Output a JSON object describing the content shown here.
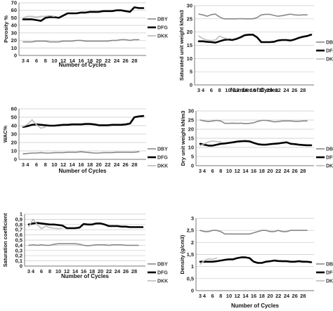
{
  "chart_data": [
    {
      "type": "line",
      "title": "",
      "xlabel": "Number of Cycles",
      "ylabel": "Porosity %",
      "ylim": [
        0,
        70
      ],
      "yticks": [
        0,
        10,
        20,
        30,
        40,
        50,
        60,
        70
      ],
      "ytick_labels": [
        "0",
        "10",
        "20",
        "30",
        "40",
        "50",
        "60",
        "70"
      ],
      "x": [
        3,
        4,
        5,
        6,
        7,
        8,
        9,
        10,
        11,
        12,
        13,
        14,
        15,
        16,
        17,
        18,
        19,
        20,
        21,
        22,
        23,
        24,
        25,
        26,
        27,
        28,
        29,
        30
      ],
      "xtick_labels": [
        "3",
        "4",
        "6",
        "8",
        "10",
        "12",
        "14",
        "16",
        "18",
        "20",
        "22",
        "24",
        "26",
        "28"
      ],
      "grid": true,
      "legend": "right",
      "series": [
        {
          "name": "DBY",
          "color": "#888888",
          "values": [
            18,
            18,
            18,
            19,
            19,
            19,
            18,
            18,
            18,
            19,
            19,
            19,
            20,
            20,
            19,
            19,
            19,
            19,
            19,
            19,
            20,
            20,
            21,
            21,
            20,
            21,
            21,
            null
          ]
        },
        {
          "name": "DFG",
          "color": "#000000",
          "values": [
            48,
            48,
            48,
            47,
            46,
            50,
            51,
            51,
            50,
            53,
            56,
            56,
            56,
            57,
            57,
            58,
            58,
            58,
            59,
            59,
            59,
            60,
            60,
            59,
            58,
            64,
            63,
            63
          ]
        },
        {
          "name": "DKK",
          "color": "#bbbbbb",
          "values": [
            50,
            52,
            52,
            51,
            52,
            52,
            53,
            52,
            null,
            null,
            null,
            null,
            null,
            null,
            null,
            null,
            null,
            null,
            null,
            null,
            null,
            null,
            null,
            null,
            null,
            null,
            null,
            null
          ]
        }
      ]
    },
    {
      "type": "line",
      "title": "",
      "xlabel": "Number of Cycles",
      "ylabel": "Saturated unit weight kN/m3",
      "ylim": [
        0,
        30
      ],
      "yticks": [
        0,
        5,
        10,
        15,
        20,
        25,
        30
      ],
      "ytick_labels": [
        "0",
        "5",
        "10",
        "15",
        "20",
        "25",
        "30"
      ],
      "x": [
        3,
        4,
        5,
        6,
        7,
        8,
        9,
        10,
        11,
        12,
        13,
        14,
        15,
        16,
        17,
        18,
        19,
        20,
        21,
        22,
        23,
        24,
        25,
        26,
        27,
        28,
        29,
        30
      ],
      "xtick_labels": [
        "3",
        "4",
        "6",
        "8",
        "10",
        "12",
        "14",
        "16",
        "18",
        "20",
        "22",
        "24",
        "26",
        "28"
      ],
      "grid": true,
      "legend": "right",
      "series": [
        {
          "name": "DBY",
          "color": "#888888",
          "values": [
            26.8,
            26.5,
            26,
            26.6,
            26.8,
            25.7,
            25,
            25,
            25,
            25,
            25.1,
            25,
            25,
            25,
            25.5,
            26.5,
            26.7,
            26.7,
            26.3,
            26,
            26.2,
            26.5,
            26.8,
            26.5,
            26.4,
            26.5,
            26.5,
            null
          ]
        },
        {
          "name": "DFG",
          "color": "#000000",
          "values": [
            16.5,
            16.5,
            16.3,
            16.2,
            16,
            16.5,
            17,
            17.2,
            17,
            17.4,
            18,
            18.8,
            19,
            19,
            18,
            16.2,
            16.2,
            16.2,
            16.3,
            16.8,
            17,
            17,
            16.8,
            17.2,
            17.8,
            18.2,
            18.5,
            19
          ]
        },
        {
          "name": "DKK",
          "color": "#bbbbbb",
          "values": [
            18.5,
            17.5,
            17,
            16.8,
            17,
            18.5,
            17.8,
            17.5,
            null,
            null,
            null,
            null,
            null,
            null,
            null,
            null,
            null,
            null,
            null,
            null,
            null,
            null,
            null,
            null,
            null,
            null,
            null,
            null
          ]
        }
      ]
    },
    {
      "type": "line",
      "title": "",
      "xlabel": "Number of Cycles",
      "ylabel": "WAC%",
      "ylim": [
        0,
        60
      ],
      "yticks": [
        0,
        10,
        20,
        30,
        40,
        50,
        60
      ],
      "ytick_labels": [
        "0",
        "10",
        "20",
        "30",
        "40",
        "50",
        "60"
      ],
      "x": [
        3,
        4,
        5,
        6,
        7,
        8,
        9,
        10,
        11,
        12,
        13,
        14,
        15,
        16,
        17,
        18,
        19,
        20,
        21,
        22,
        23,
        24,
        25,
        26,
        27,
        28,
        29,
        30
      ],
      "xtick_labels": [
        "3",
        "4",
        "6",
        "8",
        "10",
        "12",
        "14",
        "16",
        "18",
        "20",
        "22",
        "24",
        "26",
        "28"
      ],
      "grid": true,
      "legend": "right",
      "series": [
        {
          "name": "DBY",
          "color": "#888888",
          "values": [
            6.5,
            7,
            7.5,
            7.5,
            8,
            7.5,
            7.5,
            8,
            8,
            8,
            8.5,
            8.5,
            8.5,
            9,
            8.5,
            8,
            7.5,
            7.5,
            8,
            8,
            8,
            8.5,
            8.5,
            8.5,
            8.5,
            8.5,
            9,
            null
          ]
        },
        {
          "name": "DFG",
          "color": "#000000",
          "values": [
            38.5,
            39.5,
            41,
            41.5,
            41,
            40.5,
            40,
            40,
            40.5,
            41,
            41,
            41.5,
            41.5,
            41.5,
            42,
            42,
            41.5,
            40.5,
            40.5,
            40.5,
            41,
            41,
            41,
            41.5,
            42.5,
            50,
            51,
            51.5
          ]
        },
        {
          "name": "DKK",
          "color": "#bbbbbb",
          "values": [
            39,
            41.5,
            47,
            41,
            37,
            38.5,
            null,
            null,
            null,
            null,
            null,
            null,
            null,
            null,
            null,
            null,
            null,
            null,
            null,
            null,
            null,
            null,
            null,
            null,
            null,
            null,
            null,
            null
          ]
        }
      ]
    },
    {
      "type": "line",
      "title": "",
      "xlabel": "",
      "ylabel": "Dry unit weight kN/m3",
      "ylim": [
        0,
        30
      ],
      "yticks": [
        0,
        5,
        10,
        15,
        20,
        25,
        30
      ],
      "ytick_labels": [
        "0",
        "5",
        "10",
        "15",
        "20",
        "25",
        "30"
      ],
      "x": [
        3,
        4,
        5,
        6,
        7,
        8,
        9,
        10,
        11,
        12,
        13,
        14,
        15,
        16,
        17,
        18,
        19,
        20,
        21,
        22,
        23,
        24,
        25,
        26,
        27,
        28,
        29,
        30
      ],
      "xtick_labels": [
        "3",
        "4",
        "6",
        "8",
        "10",
        "12",
        "14",
        "16",
        "18",
        "20",
        "22",
        "24",
        "26",
        "28"
      ],
      "grid": true,
      "legend": "right",
      "series": [
        {
          "name": "DBY",
          "color": "#888888",
          "values": [
            25,
            24.5,
            24.2,
            24.5,
            24.8,
            24.5,
            23.2,
            23.2,
            23.3,
            23.2,
            23.3,
            23,
            23.2,
            23.5,
            24.3,
            24.8,
            24.8,
            24.5,
            24,
            24.2,
            24.5,
            24.5,
            24.5,
            24.3,
            24.3,
            24.5,
            24.5,
            null
          ]
        },
        {
          "name": "DFG",
          "color": "#000000",
          "values": [
            12,
            11.5,
            11,
            11,
            11.5,
            12,
            12.2,
            12.5,
            12.8,
            13.2,
            13.4,
            13.5,
            13.3,
            12.5,
            11.8,
            11.5,
            11.5,
            11.8,
            12,
            12.2,
            12.5,
            12.8,
            12,
            11.8,
            11.5,
            11.3,
            11.2,
            11.2
          ]
        },
        {
          "name": "DKK",
          "color": "#bbbbbb",
          "values": [
            11,
            12,
            13,
            13.5,
            13.2,
            13,
            null,
            null,
            null,
            null,
            null,
            null,
            null,
            null,
            null,
            null,
            null,
            null,
            null,
            null,
            null,
            null,
            null,
            null,
            null,
            null,
            null,
            null
          ]
        }
      ]
    },
    {
      "type": "line",
      "title": "",
      "xlabel": "Number of Cycles",
      "ylabel": "Saturation coefficient",
      "ylim": [
        0,
        1
      ],
      "yticks": [
        0,
        0.1,
        0.2,
        0.3,
        0.4,
        0.5,
        0.6,
        0.7,
        0.8,
        0.9,
        1
      ],
      "ytick_labels": [
        "0",
        "0,1",
        "0,2",
        "0,3",
        "0,4",
        "0,5",
        "0,6",
        "0,7",
        "0,8",
        "0,9",
        "1"
      ],
      "x": [
        3,
        4,
        5,
        6,
        7,
        8,
        9,
        10,
        11,
        12,
        13,
        14,
        15,
        16,
        17,
        18,
        19,
        20,
        21,
        22,
        23,
        24,
        25,
        26,
        27,
        28,
        29,
        30
      ],
      "xtick_labels": [
        "3",
        "4",
        "6",
        "8",
        "10",
        "12",
        "14",
        "16",
        "18",
        "20",
        "22",
        "24",
        "26",
        "28"
      ],
      "grid": true,
      "legend": "right",
      "series": [
        {
          "name": "DBY",
          "color": "#888888",
          "values": [
            0.4,
            0.41,
            0.4,
            0.41,
            0.4,
            0.4,
            0.42,
            0.43,
            0.43,
            0.43,
            0.43,
            0.43,
            0.42,
            0.4,
            0.39,
            0.4,
            0.41,
            0.41,
            0.41,
            0.4,
            0.41,
            0.41,
            0.41,
            0.4,
            0.4,
            0.4,
            0.4,
            null
          ]
        },
        {
          "name": "DFG",
          "color": "#000000",
          "values": [
            0.8,
            0.82,
            0.83,
            0.82,
            0.81,
            0.8,
            0.8,
            0.79,
            0.78,
            0.73,
            0.73,
            0.73,
            0.74,
            0.81,
            0.8,
            0.8,
            0.82,
            0.82,
            0.8,
            0.77,
            0.77,
            0.77,
            0.76,
            0.76,
            0.75,
            0.75,
            0.75,
            0.75
          ]
        },
        {
          "name": "DKK",
          "color": "#bbbbbb",
          "values": [
            0.76,
            0.9,
            0.8,
            0.72,
            0.77,
            0.74,
            0.73,
            0.72,
            0.73,
            null,
            null,
            null,
            null,
            null,
            null,
            null,
            null,
            null,
            null,
            null,
            null,
            null,
            null,
            null,
            null,
            null,
            null,
            null
          ]
        }
      ]
    },
    {
      "type": "line",
      "title": "",
      "xlabel": "Number of Cycles",
      "ylabel": "Density (g/cm3)",
      "ylim": [
        0,
        3
      ],
      "yticks": [
        0,
        0.5,
        1,
        1.5,
        2,
        2.5,
        3
      ],
      "ytick_labels": [
        "0",
        "0,5",
        "1",
        "1,5",
        "2",
        "2,5",
        "3"
      ],
      "x": [
        3,
        4,
        5,
        6,
        7,
        8,
        9,
        10,
        11,
        12,
        13,
        14,
        15,
        16,
        17,
        18,
        19,
        20,
        21,
        22,
        23,
        24,
        25,
        26,
        27,
        28,
        29,
        30
      ],
      "xtick_labels": [
        "3",
        "4",
        "6",
        "8",
        "10",
        "12",
        "14",
        "16",
        "18",
        "20",
        "22",
        "24",
        "26",
        "28"
      ],
      "grid": true,
      "legend": "right",
      "series": [
        {
          "name": "DBY",
          "color": "#888888",
          "values": [
            2.5,
            2.45,
            2.45,
            2.5,
            2.5,
            2.45,
            2.35,
            2.35,
            2.35,
            2.35,
            2.35,
            2.35,
            2.35,
            2.4,
            2.45,
            2.5,
            2.5,
            2.45,
            2.45,
            2.5,
            2.45,
            2.45,
            2.5,
            2.5,
            2.5,
            2.5,
            2.5,
            null
          ]
        },
        {
          "name": "DFG",
          "color": "#000000",
          "values": [
            1.2,
            1.2,
            1.2,
            1.2,
            1.22,
            1.25,
            1.28,
            1.3,
            1.3,
            1.35,
            1.38,
            1.38,
            1.35,
            1.2,
            1.15,
            1.15,
            1.2,
            1.22,
            1.25,
            1.23,
            1.22,
            1.22,
            1.2,
            1.2,
            1.22,
            1.2,
            1.2,
            1.18
          ]
        },
        {
          "name": "DKK",
          "color": "#bbbbbb",
          "values": [
            1.1,
            1.25,
            1.32,
            1.3,
            1.35,
            null,
            null,
            null,
            null,
            null,
            null,
            null,
            null,
            null,
            null,
            null,
            null,
            null,
            null,
            null,
            null,
            null,
            null,
            null,
            null,
            null,
            null,
            null
          ]
        }
      ]
    }
  ]
}
